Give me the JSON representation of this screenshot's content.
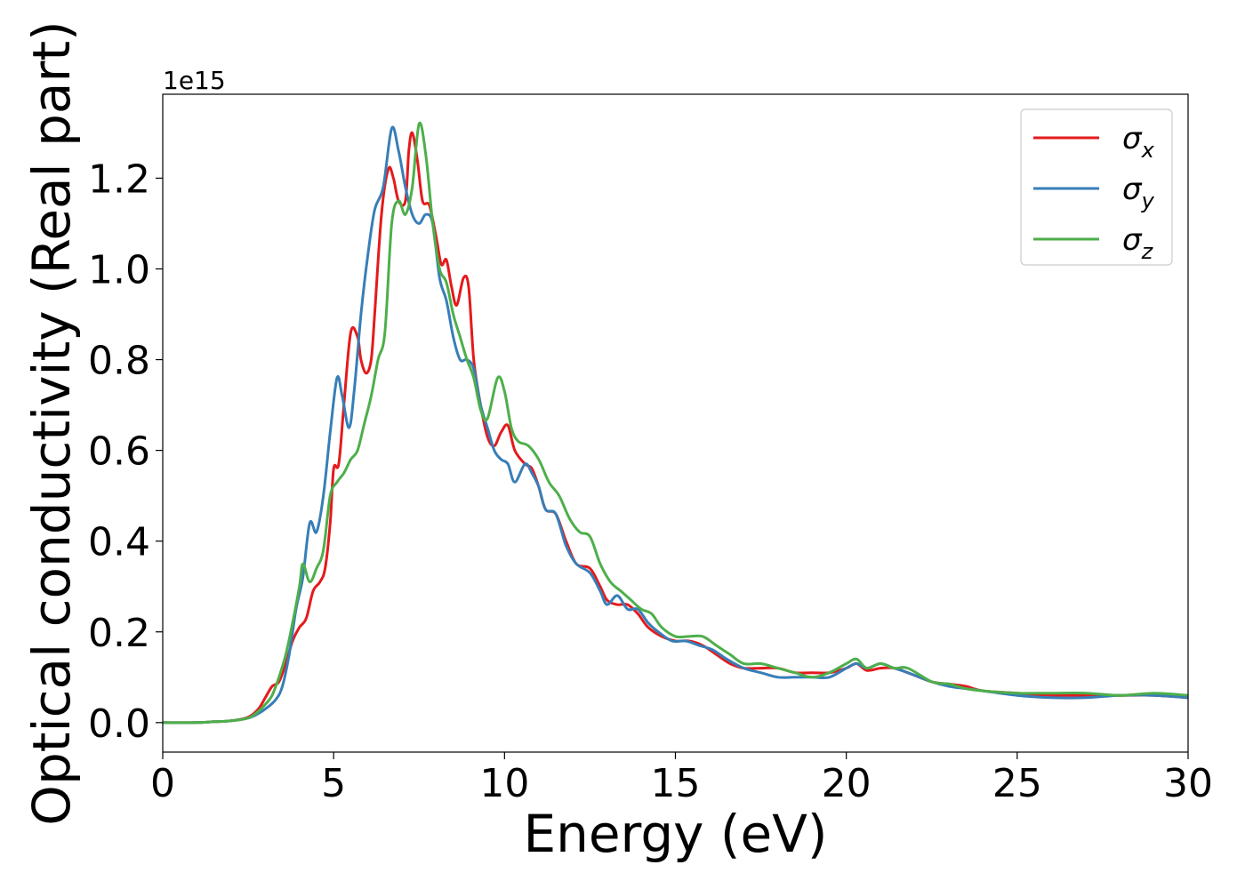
{
  "chart_data": {
    "type": "line",
    "title": "",
    "xlabel": "Energy (eV)",
    "ylabel": "Optical conductivity (Real part)",
    "y_offset_label": "1e15",
    "xlim": [
      0,
      30
    ],
    "ylim": [
      -0.065,
      1.385
    ],
    "xticks": [
      {
        "value": 0,
        "label": "0"
      },
      {
        "value": 5,
        "label": "5"
      },
      {
        "value": 10,
        "label": "10"
      },
      {
        "value": 15,
        "label": "15"
      },
      {
        "value": 20,
        "label": "20"
      },
      {
        "value": 25,
        "label": "25"
      },
      {
        "value": 30,
        "label": "30"
      }
    ],
    "yticks": [
      {
        "value": 0.0,
        "label": "0.0"
      },
      {
        "value": 0.2,
        "label": "0.2"
      },
      {
        "value": 0.4,
        "label": "0.4"
      },
      {
        "value": 0.6,
        "label": "0.6"
      },
      {
        "value": 0.8,
        "label": "0.8"
      },
      {
        "value": 1.0,
        "label": "1.0"
      },
      {
        "value": 1.2,
        "label": "1.2"
      }
    ],
    "grid": false,
    "legend_position": "top-right",
    "series": [
      {
        "name": "σ",
        "subscript": "x",
        "color": "#e41a1c",
        "points": [
          [
            0,
            0.0
          ],
          [
            1,
            0.0
          ],
          [
            1.5,
            0.002
          ],
          [
            2,
            0.004
          ],
          [
            2.5,
            0.012
          ],
          [
            2.8,
            0.03
          ],
          [
            3.0,
            0.055
          ],
          [
            3.2,
            0.08
          ],
          [
            3.4,
            0.09
          ],
          [
            3.6,
            0.13
          ],
          [
            3.8,
            0.18
          ],
          [
            4.0,
            0.21
          ],
          [
            4.2,
            0.23
          ],
          [
            4.4,
            0.29
          ],
          [
            4.6,
            0.31
          ],
          [
            4.75,
            0.34
          ],
          [
            4.9,
            0.44
          ],
          [
            5.0,
            0.56
          ],
          [
            5.15,
            0.57
          ],
          [
            5.3,
            0.7
          ],
          [
            5.5,
            0.86
          ],
          [
            5.7,
            0.85
          ],
          [
            5.8,
            0.8
          ],
          [
            5.95,
            0.77
          ],
          [
            6.1,
            0.8
          ],
          [
            6.2,
            0.9
          ],
          [
            6.4,
            1.12
          ],
          [
            6.6,
            1.22
          ],
          [
            6.75,
            1.2
          ],
          [
            6.9,
            1.15
          ],
          [
            7.1,
            1.15
          ],
          [
            7.2,
            1.26
          ],
          [
            7.3,
            1.3
          ],
          [
            7.45,
            1.24
          ],
          [
            7.6,
            1.15
          ],
          [
            7.8,
            1.14
          ],
          [
            8.0,
            1.07
          ],
          [
            8.15,
            1.01
          ],
          [
            8.3,
            1.02
          ],
          [
            8.45,
            0.96
          ],
          [
            8.6,
            0.92
          ],
          [
            8.8,
            0.98
          ],
          [
            8.95,
            0.96
          ],
          [
            9.1,
            0.8
          ],
          [
            9.3,
            0.7
          ],
          [
            9.5,
            0.63
          ],
          [
            9.7,
            0.61
          ],
          [
            9.9,
            0.64
          ],
          [
            10.1,
            0.655
          ],
          [
            10.3,
            0.6
          ],
          [
            10.6,
            0.57
          ],
          [
            10.8,
            0.56
          ],
          [
            11.0,
            0.52
          ],
          [
            11.2,
            0.47
          ],
          [
            11.5,
            0.46
          ],
          [
            11.8,
            0.4
          ],
          [
            12.1,
            0.35
          ],
          [
            12.5,
            0.34
          ],
          [
            12.8,
            0.3
          ],
          [
            13.0,
            0.27
          ],
          [
            13.3,
            0.26
          ],
          [
            13.6,
            0.26
          ],
          [
            13.9,
            0.24
          ],
          [
            14.2,
            0.21
          ],
          [
            14.6,
            0.19
          ],
          [
            15.0,
            0.18
          ],
          [
            15.4,
            0.18
          ],
          [
            15.8,
            0.17
          ],
          [
            16.2,
            0.15
          ],
          [
            16.6,
            0.13
          ],
          [
            17.0,
            0.12
          ],
          [
            17.5,
            0.12
          ],
          [
            18.0,
            0.12
          ],
          [
            18.5,
            0.11
          ],
          [
            19.0,
            0.11
          ],
          [
            19.5,
            0.11
          ],
          [
            20.0,
            0.12
          ],
          [
            20.3,
            0.13
          ],
          [
            20.6,
            0.115
          ],
          [
            21.0,
            0.12
          ],
          [
            21.4,
            0.12
          ],
          [
            21.8,
            0.11
          ],
          [
            22.5,
            0.09
          ],
          [
            23.0,
            0.085
          ],
          [
            23.5,
            0.08
          ],
          [
            24.0,
            0.07
          ],
          [
            25.0,
            0.065
          ],
          [
            26.0,
            0.06
          ],
          [
            27.0,
            0.06
          ],
          [
            28.0,
            0.06
          ],
          [
            29.0,
            0.06
          ],
          [
            30.0,
            0.055
          ]
        ]
      },
      {
        "name": "σ",
        "subscript": "y",
        "color": "#377eb8",
        "points": [
          [
            0,
            0.0
          ],
          [
            1,
            0.0
          ],
          [
            1.5,
            0.002
          ],
          [
            2,
            0.004
          ],
          [
            2.5,
            0.01
          ],
          [
            2.8,
            0.02
          ],
          [
            3.0,
            0.03
          ],
          [
            3.3,
            0.05
          ],
          [
            3.5,
            0.08
          ],
          [
            3.7,
            0.15
          ],
          [
            3.9,
            0.25
          ],
          [
            4.1,
            0.32
          ],
          [
            4.3,
            0.44
          ],
          [
            4.5,
            0.42
          ],
          [
            4.7,
            0.5
          ],
          [
            4.9,
            0.64
          ],
          [
            5.1,
            0.76
          ],
          [
            5.25,
            0.72
          ],
          [
            5.45,
            0.65
          ],
          [
            5.6,
            0.73
          ],
          [
            5.8,
            0.9
          ],
          [
            6.0,
            1.03
          ],
          [
            6.2,
            1.13
          ],
          [
            6.45,
            1.18
          ],
          [
            6.7,
            1.31
          ],
          [
            6.9,
            1.26
          ],
          [
            7.1,
            1.18
          ],
          [
            7.3,
            1.12
          ],
          [
            7.5,
            1.1
          ],
          [
            7.7,
            1.12
          ],
          [
            7.9,
            1.1
          ],
          [
            8.1,
            0.98
          ],
          [
            8.3,
            0.93
          ],
          [
            8.5,
            0.85
          ],
          [
            8.7,
            0.8
          ],
          [
            8.9,
            0.8
          ],
          [
            9.1,
            0.78
          ],
          [
            9.3,
            0.7
          ],
          [
            9.5,
            0.65
          ],
          [
            9.7,
            0.6
          ],
          [
            9.9,
            0.58
          ],
          [
            10.1,
            0.57
          ],
          [
            10.3,
            0.53
          ],
          [
            10.6,
            0.57
          ],
          [
            10.8,
            0.55
          ],
          [
            11.0,
            0.52
          ],
          [
            11.2,
            0.47
          ],
          [
            11.5,
            0.46
          ],
          [
            11.8,
            0.39
          ],
          [
            12.1,
            0.35
          ],
          [
            12.5,
            0.33
          ],
          [
            12.8,
            0.29
          ],
          [
            13.0,
            0.26
          ],
          [
            13.3,
            0.28
          ],
          [
            13.6,
            0.25
          ],
          [
            13.9,
            0.25
          ],
          [
            14.2,
            0.22
          ],
          [
            14.5,
            0.2
          ],
          [
            14.9,
            0.18
          ],
          [
            15.3,
            0.18
          ],
          [
            15.7,
            0.17
          ],
          [
            16.1,
            0.16
          ],
          [
            16.5,
            0.14
          ],
          [
            17.0,
            0.12
          ],
          [
            17.5,
            0.11
          ],
          [
            18.0,
            0.1
          ],
          [
            18.5,
            0.1
          ],
          [
            19.0,
            0.1
          ],
          [
            19.5,
            0.1
          ],
          [
            20.0,
            0.12
          ],
          [
            20.3,
            0.13
          ],
          [
            20.6,
            0.12
          ],
          [
            21.0,
            0.13
          ],
          [
            21.4,
            0.12
          ],
          [
            21.8,
            0.11
          ],
          [
            22.5,
            0.09
          ],
          [
            23.0,
            0.08
          ],
          [
            23.5,
            0.075
          ],
          [
            24.0,
            0.07
          ],
          [
            25.0,
            0.06
          ],
          [
            26.0,
            0.055
          ],
          [
            27.0,
            0.055
          ],
          [
            28.0,
            0.06
          ],
          [
            29.0,
            0.06
          ],
          [
            30.0,
            0.055
          ]
        ]
      },
      {
        "name": "σ",
        "subscript": "z",
        "color": "#4daf4a",
        "points": [
          [
            0,
            0.0
          ],
          [
            1,
            0.0
          ],
          [
            1.5,
            0.002
          ],
          [
            2,
            0.004
          ],
          [
            2.5,
            0.01
          ],
          [
            2.8,
            0.025
          ],
          [
            3.0,
            0.04
          ],
          [
            3.2,
            0.06
          ],
          [
            3.4,
            0.1
          ],
          [
            3.6,
            0.15
          ],
          [
            3.8,
            0.22
          ],
          [
            4.0,
            0.3
          ],
          [
            4.1,
            0.35
          ],
          [
            4.3,
            0.31
          ],
          [
            4.5,
            0.34
          ],
          [
            4.7,
            0.38
          ],
          [
            4.9,
            0.5
          ],
          [
            5.1,
            0.53
          ],
          [
            5.3,
            0.55
          ],
          [
            5.5,
            0.58
          ],
          [
            5.7,
            0.6
          ],
          [
            5.9,
            0.66
          ],
          [
            6.1,
            0.72
          ],
          [
            6.3,
            0.8
          ],
          [
            6.5,
            0.86
          ],
          [
            6.7,
            1.1
          ],
          [
            6.9,
            1.15
          ],
          [
            7.1,
            1.12
          ],
          [
            7.3,
            1.18
          ],
          [
            7.5,
            1.32
          ],
          [
            7.7,
            1.25
          ],
          [
            7.9,
            1.1
          ],
          [
            8.1,
            1.0
          ],
          [
            8.3,
            0.97
          ],
          [
            8.5,
            0.9
          ],
          [
            8.7,
            0.85
          ],
          [
            8.9,
            0.8
          ],
          [
            9.1,
            0.76
          ],
          [
            9.3,
            0.69
          ],
          [
            9.5,
            0.67
          ],
          [
            9.8,
            0.76
          ],
          [
            10.0,
            0.73
          ],
          [
            10.2,
            0.65
          ],
          [
            10.4,
            0.62
          ],
          [
            10.7,
            0.61
          ],
          [
            11.0,
            0.58
          ],
          [
            11.3,
            0.53
          ],
          [
            11.6,
            0.5
          ],
          [
            11.9,
            0.45
          ],
          [
            12.2,
            0.42
          ],
          [
            12.5,
            0.41
          ],
          [
            12.8,
            0.35
          ],
          [
            13.1,
            0.31
          ],
          [
            13.4,
            0.29
          ],
          [
            13.7,
            0.27
          ],
          [
            14.0,
            0.25
          ],
          [
            14.3,
            0.24
          ],
          [
            14.6,
            0.21
          ],
          [
            15.0,
            0.19
          ],
          [
            15.4,
            0.19
          ],
          [
            15.8,
            0.19
          ],
          [
            16.2,
            0.17
          ],
          [
            16.6,
            0.15
          ],
          [
            17.0,
            0.13
          ],
          [
            17.5,
            0.13
          ],
          [
            18.0,
            0.12
          ],
          [
            18.5,
            0.11
          ],
          [
            19.0,
            0.1
          ],
          [
            19.5,
            0.11
          ],
          [
            20.0,
            0.13
          ],
          [
            20.3,
            0.14
          ],
          [
            20.6,
            0.12
          ],
          [
            21.0,
            0.13
          ],
          [
            21.4,
            0.12
          ],
          [
            21.8,
            0.12
          ],
          [
            22.5,
            0.09
          ],
          [
            23.0,
            0.085
          ],
          [
            23.5,
            0.075
          ],
          [
            24.0,
            0.07
          ],
          [
            25.0,
            0.065
          ],
          [
            26.0,
            0.065
          ],
          [
            27.0,
            0.065
          ],
          [
            28.0,
            0.06
          ],
          [
            29.0,
            0.065
          ],
          [
            30.0,
            0.06
          ]
        ]
      }
    ]
  }
}
